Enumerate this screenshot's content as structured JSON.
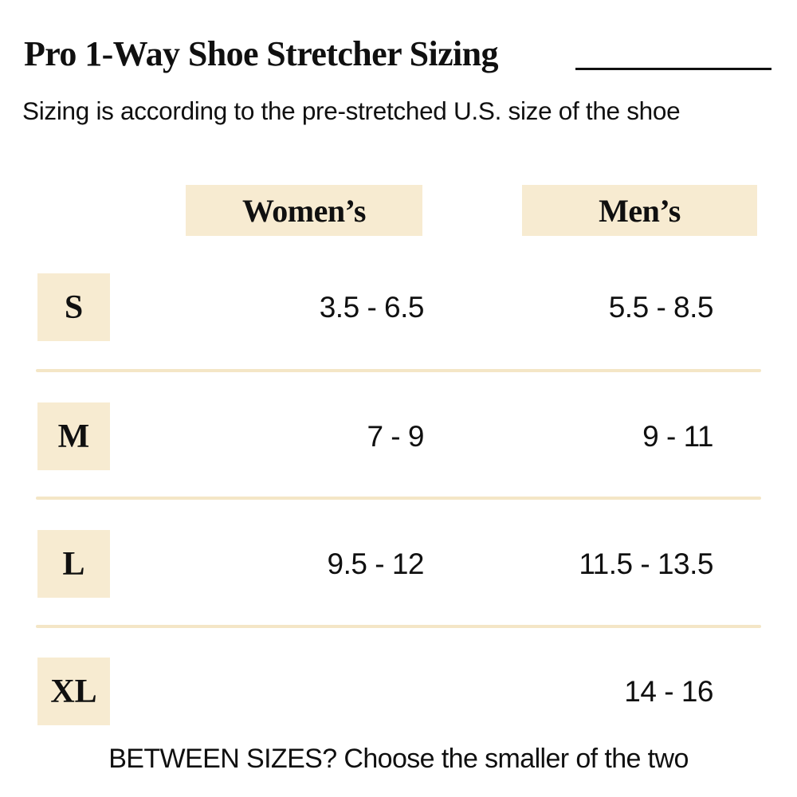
{
  "page": {
    "title": "Pro 1-Way Shoe Stretcher Sizing",
    "subtitle": "Sizing is according to the pre-stretched U.S. size of the shoe",
    "footer": "BETWEEN SIZES? Choose the smaller of the two"
  },
  "table": {
    "columns": [
      {
        "label": "Women’s"
      },
      {
        "label": "Men’s"
      }
    ],
    "rows": [
      {
        "size": "S",
        "womens": "3.5 - 6.5",
        "mens": "5.5 - 8.5"
      },
      {
        "size": "M",
        "womens": "7 - 9",
        "mens": "9 - 11"
      },
      {
        "size": "L",
        "womens": "9.5 - 12",
        "mens": "11.5 - 13.5"
      },
      {
        "size": "XL",
        "womens": "",
        "mens": "14 - 16"
      }
    ]
  },
  "colors": {
    "background": "#ffffff",
    "highlight": "#f7ebd1",
    "divider": "#f4e6c6",
    "text": "#101010"
  }
}
